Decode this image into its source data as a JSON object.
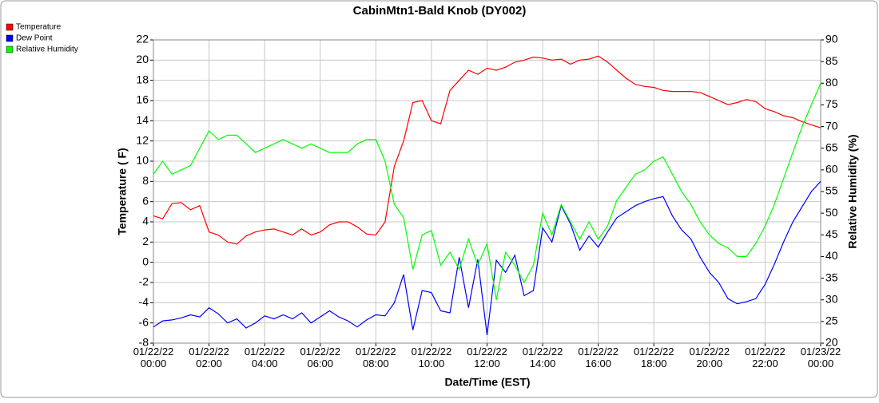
{
  "chart_data": {
    "type": "line",
    "title": "CabinMtn1-Bald Knob (DY002)",
    "xlabel": "Date/Time (EST)",
    "ylabel": "Temperature ( F)",
    "y2label": "Relative Humidity (%)",
    "grid": true,
    "legend": "top-left",
    "xlim": [
      "2022-01-22 00:00",
      "2022-01-23 00:00"
    ],
    "xticks": [
      {
        "value": "2022-01-22 00:00",
        "label": "01/22/22 00:00"
      },
      {
        "value": "2022-01-22 02:00",
        "label": "01/22/22 02:00"
      },
      {
        "value": "2022-01-22 04:00",
        "label": "01/22/22 04:00"
      },
      {
        "value": "2022-01-22 06:00",
        "label": "01/22/22 06:00"
      },
      {
        "value": "2022-01-22 08:00",
        "label": "01/22/22 08:00"
      },
      {
        "value": "2022-01-22 10:00",
        "label": "01/22/22 10:00"
      },
      {
        "value": "2022-01-22 12:00",
        "label": "01/22/22 12:00"
      },
      {
        "value": "2022-01-22 14:00",
        "label": "01/22/22 14:00"
      },
      {
        "value": "2022-01-22 16:00",
        "label": "01/22/22 16:00"
      },
      {
        "value": "2022-01-22 18:00",
        "label": "01/22/22 18:00"
      },
      {
        "value": "2022-01-22 20:00",
        "label": "01/22/22 20:00"
      },
      {
        "value": "2022-01-22 22:00",
        "label": "01/22/22 22:00"
      },
      {
        "value": "2022-01-23 00:00",
        "label": "01/23/22 00:00"
      }
    ],
    "ylim": [
      -8,
      22
    ],
    "yticks": [
      -8,
      -6,
      -4,
      -2,
      0,
      2,
      4,
      6,
      8,
      10,
      12,
      14,
      16,
      18,
      20,
      22
    ],
    "y2lim": [
      20,
      90
    ],
    "y2ticks": [
      20,
      25,
      30,
      35,
      40,
      45,
      50,
      55,
      60,
      65,
      70,
      75,
      80,
      85,
      90
    ],
    "x": [
      "2022-01-22 00:00",
      "2022-01-22 00:20",
      "2022-01-22 00:40",
      "2022-01-22 01:00",
      "2022-01-22 01:20",
      "2022-01-22 01:40",
      "2022-01-22 02:00",
      "2022-01-22 02:20",
      "2022-01-22 02:40",
      "2022-01-22 03:00",
      "2022-01-22 03:20",
      "2022-01-22 03:40",
      "2022-01-22 04:00",
      "2022-01-22 04:20",
      "2022-01-22 04:40",
      "2022-01-22 05:00",
      "2022-01-22 05:20",
      "2022-01-22 05:40",
      "2022-01-22 06:00",
      "2022-01-22 06:20",
      "2022-01-22 06:40",
      "2022-01-22 07:00",
      "2022-01-22 07:20",
      "2022-01-22 07:40",
      "2022-01-22 08:00",
      "2022-01-22 08:20",
      "2022-01-22 08:40",
      "2022-01-22 09:00",
      "2022-01-22 09:20",
      "2022-01-22 09:40",
      "2022-01-22 10:00",
      "2022-01-22 10:20",
      "2022-01-22 10:40",
      "2022-01-22 11:00",
      "2022-01-22 11:20",
      "2022-01-22 11:40",
      "2022-01-22 12:00",
      "2022-01-22 12:20",
      "2022-01-22 12:40",
      "2022-01-22 13:00",
      "2022-01-22 13:20",
      "2022-01-22 13:40",
      "2022-01-22 14:00",
      "2022-01-22 14:20",
      "2022-01-22 14:40",
      "2022-01-22 15:00",
      "2022-01-22 15:20",
      "2022-01-22 15:40",
      "2022-01-22 16:00",
      "2022-01-22 16:20",
      "2022-01-22 16:40",
      "2022-01-22 17:00",
      "2022-01-22 17:20",
      "2022-01-22 17:40",
      "2022-01-22 18:00",
      "2022-01-22 18:20",
      "2022-01-22 18:40",
      "2022-01-22 19:00",
      "2022-01-22 19:20",
      "2022-01-22 19:40",
      "2022-01-22 20:00",
      "2022-01-22 20:20",
      "2022-01-22 20:40",
      "2022-01-22 21:00",
      "2022-01-22 21:20",
      "2022-01-22 21:40",
      "2022-01-22 22:00",
      "2022-01-22 22:20",
      "2022-01-22 22:40",
      "2022-01-22 23:00",
      "2022-01-22 23:20",
      "2022-01-22 23:40",
      "2022-01-23 00:00"
    ],
    "series": [
      {
        "name": "Temperature",
        "color": "#ff0000",
        "values": [
          4.6,
          4.3,
          5.8,
          5.9,
          5.2,
          5.6,
          3.0,
          2.7,
          2.0,
          1.8,
          2.6,
          3.0,
          3.2,
          3.3,
          3.0,
          2.7,
          3.3,
          2.7,
          3.0,
          3.7,
          4.0,
          4.0,
          3.5,
          2.8,
          2.7,
          4.0,
          9.5,
          12.0,
          15.8,
          16.0,
          14.0,
          13.7,
          17.0,
          18.0,
          19.0,
          18.6,
          19.2,
          19.0,
          19.3,
          19.8,
          20.0,
          20.3,
          20.2,
          20.0,
          20.1,
          19.6,
          20.0,
          20.1,
          20.4,
          19.8,
          19.0,
          18.2,
          17.6,
          17.4,
          17.3,
          17.0,
          16.9,
          16.9,
          16.9,
          16.8,
          16.4,
          16.0,
          15.6,
          15.8,
          16.1,
          15.9,
          15.2,
          14.9,
          14.5,
          14.3,
          13.9,
          13.6,
          13.3
        ]
      },
      {
        "name": "Dew Point",
        "color": "#0000ff",
        "values": [
          -6.4,
          -5.8,
          -5.7,
          -5.5,
          -5.2,
          -5.4,
          -4.5,
          -5.1,
          -6.0,
          -5.6,
          -6.5,
          -6.0,
          -5.3,
          -5.6,
          -5.2,
          -5.6,
          -5.0,
          -6.0,
          -5.4,
          -4.8,
          -5.4,
          -5.8,
          -6.4,
          -5.7,
          -5.2,
          -5.3,
          -4.0,
          -1.2,
          -6.7,
          -2.8,
          -3.0,
          -4.8,
          -5.0,
          0.5,
          -4.5,
          0.3,
          -7.2,
          0.2,
          -1.0,
          0.7,
          -3.3,
          -2.8,
          3.4,
          2.0,
          5.6,
          3.8,
          1.2,
          2.6,
          1.5,
          3.0,
          4.4,
          5.0,
          5.6,
          6.0,
          6.3,
          6.5,
          4.6,
          3.2,
          2.3,
          0.5,
          -1.0,
          -2.0,
          -3.6,
          -4.1,
          -3.9,
          -3.6,
          -2.2,
          -0.2,
          2.0,
          4.0,
          5.5,
          7.0,
          8.0
        ]
      },
      {
        "name": "Relative Humidity",
        "color": "#00ff00",
        "axis": "y2",
        "values": [
          59,
          62,
          59,
          60,
          61,
          65,
          69,
          67,
          68,
          68,
          66,
          64,
          65,
          66,
          67,
          66,
          65,
          66,
          65,
          64,
          64,
          64,
          66,
          67,
          67,
          62,
          52,
          49,
          37,
          45,
          46,
          38,
          41,
          37,
          44,
          38,
          43,
          30,
          41,
          38,
          34,
          38,
          50,
          45,
          52,
          48,
          44,
          48,
          44,
          47,
          53,
          56,
          59,
          60,
          62,
          63,
          59,
          55,
          52,
          48,
          45,
          43,
          42,
          40,
          40,
          43,
          47,
          52,
          58,
          64,
          70,
          75,
          80
        ]
      }
    ]
  }
}
